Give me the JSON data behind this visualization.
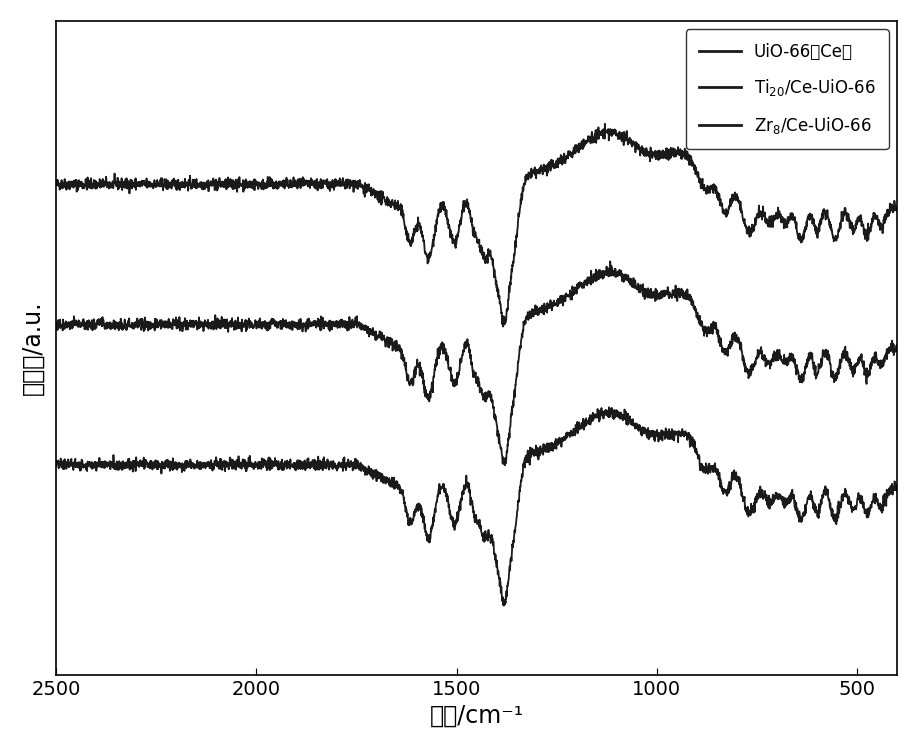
{
  "xlabel": "波数/cm⁻¹",
  "ylabel": "透过率/a.u.",
  "xlim": [
    2500,
    400
  ],
  "xlabel_fontsize": 17,
  "ylabel_fontsize": 17,
  "legend_fontsize": 12,
  "tick_fontsize": 14,
  "x_ticks": [
    2500,
    2000,
    1500,
    1000,
    500
  ],
  "line_color": "#1a1a1a",
  "background_color": "#ffffff",
  "noise_seed": 42,
  "offsets": [
    0.7,
    0.4,
    0.1
  ]
}
